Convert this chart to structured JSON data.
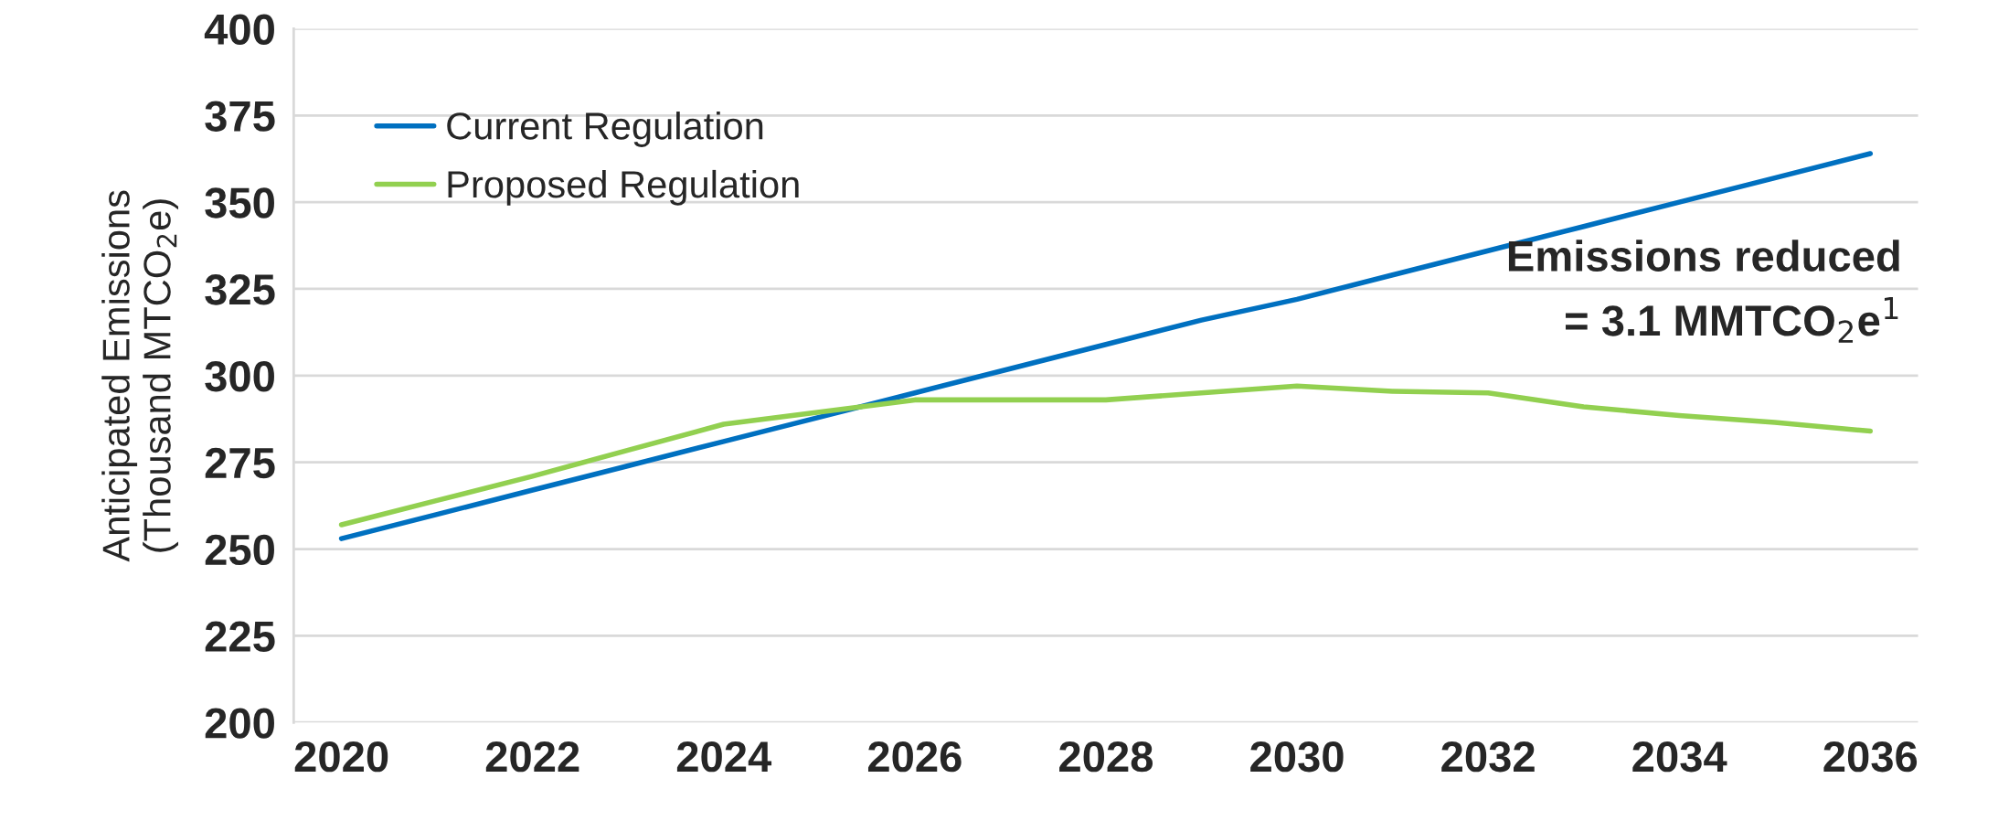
{
  "chart_data": {
    "type": "line",
    "ylabel": "Anticipated Emissions\n(Thousand MTCO$_{2}$e)",
    "x": [
      2020,
      2021,
      2022,
      2023,
      2024,
      2025,
      2026,
      2027,
      2028,
      2029,
      2030,
      2031,
      2032,
      2033,
      2034,
      2035,
      2036
    ],
    "series": [
      {
        "name": "Current Regulation",
        "color": "#0070c0",
        "values": [
          253,
          260,
          267,
          274,
          281,
          288,
          295,
          302,
          309,
          316,
          322,
          329,
          336,
          343,
          350,
          357,
          364
        ]
      },
      {
        "name": "Proposed Regulation",
        "color": "#92d050",
        "values": [
          257,
          264,
          271,
          278.5,
          286,
          289.5,
          293,
          293,
          293,
          295,
          297,
          295.5,
          295,
          291,
          288.5,
          286.5,
          284
        ]
      }
    ],
    "xlim": [
      2019.5,
      2036.5
    ],
    "xticks": [
      2020,
      2022,
      2024,
      2026,
      2028,
      2030,
      2032,
      2034,
      2036
    ],
    "ylim": [
      200,
      400
    ],
    "yticks": [
      200,
      225,
      250,
      275,
      300,
      325,
      350,
      375,
      400
    ],
    "grid": "y",
    "legend": "top left",
    "marker": "none",
    "line_style": "solid",
    "annotations": [
      "Emissions reduced\n= 3.1 MMTCO$_{2}$e$^{1}$"
    ]
  }
}
